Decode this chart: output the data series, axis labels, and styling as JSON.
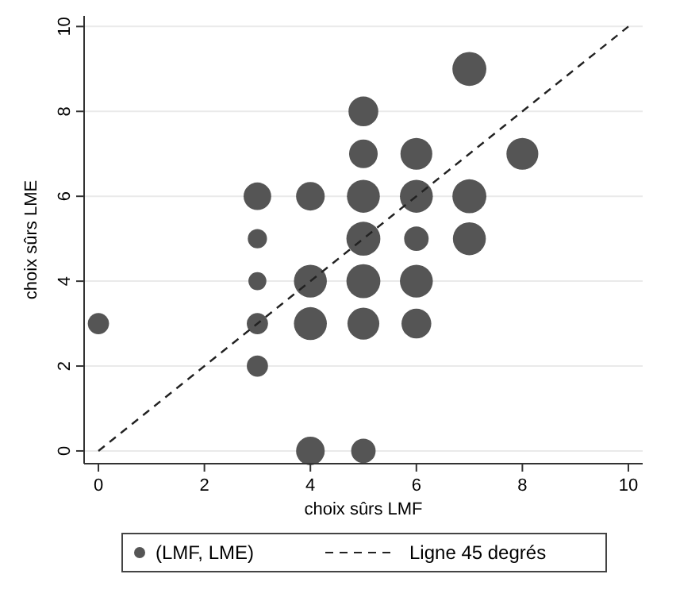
{
  "chart_data": {
    "type": "bubble",
    "xlabel": "choix sûrs LMF",
    "ylabel": "choix sûrs LME",
    "xlim": [
      -0.27,
      10.27
    ],
    "ylim": [
      -0.3,
      10.25
    ],
    "xticks": [
      0,
      2,
      4,
      6,
      8,
      10
    ],
    "yticks": [
      0,
      2,
      4,
      6,
      8,
      10
    ],
    "grid": "y",
    "legend": "bottom",
    "series": [
      {
        "name": "(LMF, LME)",
        "color": "#555555",
        "x": [
          0,
          3,
          3,
          3,
          3,
          3,
          4,
          4,
          4,
          4,
          5,
          5,
          5,
          5,
          5,
          5,
          5,
          6,
          6,
          6,
          6,
          6,
          7,
          7,
          7,
          8
        ],
        "values": [
          3,
          6,
          5,
          4,
          3,
          2,
          6,
          4,
          3,
          0,
          8,
          7,
          6,
          5,
          4,
          3,
          0,
          7,
          6,
          5,
          4,
          3,
          9,
          6,
          5,
          7
        ],
        "sizes": [
          0.39,
          0.66,
          0.32,
          0.28,
          0.39,
          0.39,
          0.71,
          0.94,
          0.94,
          0.71,
          0.77,
          0.71,
          0.94,
          1,
          1,
          0.88,
          0.52,
          0.88,
          0.94,
          0.52,
          0.94,
          0.77,
          1,
          1,
          0.94,
          0.88
        ]
      },
      {
        "type": "line",
        "name": "Ligne 45 degrés",
        "color": "#222222",
        "line_style": "dashed",
        "x": [
          0,
          10
        ],
        "values": [
          0,
          10
        ]
      }
    ]
  }
}
